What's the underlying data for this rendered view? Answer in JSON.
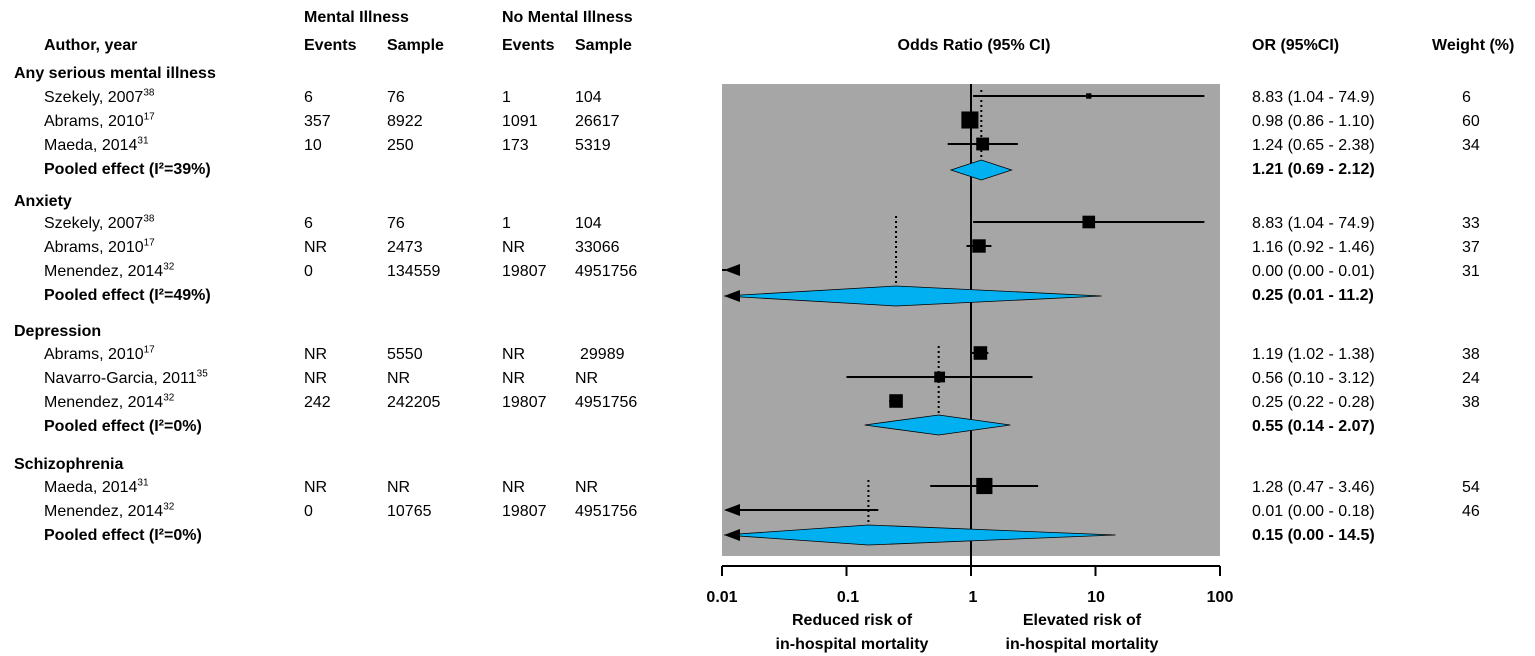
{
  "headers": {
    "mental_illness": "Mental Illness",
    "no_mental_illness": "No Mental Illness",
    "author_year": "Author, year",
    "events": "Events",
    "sample": "Sample",
    "odds_ratio": "Odds Ratio (95% CI)",
    "or_ci": "OR (95%CI)",
    "weight": "Weight (%)"
  },
  "groups": [
    {
      "title": "Any serious mental illness",
      "pooled_label": "Pooled effect (I²=39%)",
      "pooled_or": "1.21 (0.69 - 2.12)",
      "studies": [
        {
          "author": "Szekely, 2007",
          "ref": "38",
          "mi_events": "6",
          "mi_sample": "76",
          "nmi_events": "1",
          "nmi_sample": "104",
          "or_text": "8.83 (1.04 - 74.9)",
          "weight": "6"
        },
        {
          "author": "Abrams, 2010",
          "ref": "17",
          "mi_events": "357",
          "mi_sample": "8922",
          "nmi_events": "1091",
          "nmi_sample": "26617",
          "or_text": "0.98 (0.86 - 1.10)",
          "weight": "60"
        },
        {
          "author": "Maeda, 2014",
          "ref": "31",
          "mi_events": "10",
          "mi_sample": "250",
          "nmi_events": "173",
          "nmi_sample": "5319",
          "or_text": "1.24 (0.65 - 2.38)",
          "weight": "34"
        }
      ]
    },
    {
      "title": "Anxiety",
      "pooled_label": "Pooled effect (I²=49%)",
      "pooled_or": "0.25 (0.01 - 11.2)",
      "studies": [
        {
          "author": "Szekely, 2007",
          "ref": "38",
          "mi_events": "6",
          "mi_sample": "76",
          "nmi_events": "1",
          "nmi_sample": "104",
          "or_text": "8.83 (1.04 - 74.9)",
          "weight": "33"
        },
        {
          "author": "Abrams, 2010",
          "ref": "17",
          "mi_events": "NR",
          "mi_sample": "2473",
          "nmi_events": "NR",
          "nmi_sample": "33066",
          "or_text": "1.16 (0.92 - 1.46)",
          "weight": "37"
        },
        {
          "author": "Menendez, 2014",
          "ref": "32",
          "mi_events": "0",
          "mi_sample": "134559",
          "nmi_events": "19807",
          "nmi_sample": "4951756",
          "or_text": "0.00 (0.00 - 0.01)",
          "weight": "31"
        }
      ]
    },
    {
      "title": "Depression",
      "pooled_label": "Pooled effect (I²=0%)",
      "pooled_or": "0.55 (0.14 - 2.07)",
      "studies": [
        {
          "author": "Abrams, 2010",
          "ref": "17",
          "mi_events": "NR",
          "mi_sample": "5550",
          "nmi_events": "NR",
          "nmi_sample": "29989",
          "or_text": "1.19 (1.02 - 1.38)",
          "weight": "38"
        },
        {
          "author": "Navarro-Garcia, 2011",
          "ref": "35",
          "mi_events": "NR",
          "mi_sample": "NR",
          "nmi_events": "NR",
          "nmi_sample": "NR",
          "or_text": "0.56 (0.10 - 3.12)",
          "weight": "24"
        },
        {
          "author": "Menendez, 2014",
          "ref": "32",
          "mi_events": "242",
          "mi_sample": "242205",
          "nmi_events": "19807",
          "nmi_sample": "4951756",
          "or_text": "0.25 (0.22 - 0.28)",
          "weight": "38"
        }
      ]
    },
    {
      "title": "Schizophrenia",
      "pooled_label": "Pooled effect (I²=0%)",
      "pooled_or": "0.15 (0.00 - 14.5)",
      "studies": [
        {
          "author": "Maeda, 2014",
          "ref": "31",
          "mi_events": "NR",
          "mi_sample": "NR",
          "nmi_events": "NR",
          "nmi_sample": "NR",
          "or_text": "1.28 (0.47 - 3.46)",
          "weight": "54"
        },
        {
          "author": "Menendez, 2014",
          "ref": "32",
          "mi_events": "0",
          "mi_sample": "10765",
          "nmi_events": "19807",
          "nmi_sample": "4951756",
          "or_text": "0.01 (0.00 - 0.18)",
          "weight": "46"
        }
      ]
    }
  ],
  "axis": {
    "scale": "log",
    "range": [
      0.01,
      100
    ],
    "ticks": [
      "0.01",
      "0.1",
      "1",
      "10",
      "100"
    ],
    "left_label": [
      "Reduced risk of",
      "in-hospital mortality"
    ],
    "right_label": [
      "Elevated risk of",
      "in-hospital mortality"
    ]
  },
  "colors": {
    "plot_background": "#a6a6a6",
    "diamond_fill": "#00b0f0",
    "marker": "#000000"
  },
  "chart_data": {
    "type": "forest",
    "x_scale": "log",
    "xlim": [
      0.01,
      100
    ],
    "xticks": [
      0.01,
      0.1,
      1,
      10,
      100
    ],
    "reference_line": 1,
    "groups": [
      {
        "title": "Any serious mental illness",
        "studies": [
          {
            "author": "Szekely, 2007",
            "or": 8.83,
            "lo": 1.04,
            "hi": 74.9,
            "weight": 6
          },
          {
            "author": "Abrams, 2010",
            "or": 0.98,
            "lo": 0.86,
            "hi": 1.1,
            "weight": 60
          },
          {
            "author": "Maeda, 2014",
            "or": 1.24,
            "lo": 0.65,
            "hi": 2.38,
            "weight": 34
          }
        ],
        "pooled": {
          "or": 1.21,
          "lo": 0.69,
          "hi": 2.12
        }
      },
      {
        "title": "Anxiety",
        "studies": [
          {
            "author": "Szekely, 2007",
            "or": 8.83,
            "lo": 1.04,
            "hi": 74.9,
            "weight": 33
          },
          {
            "author": "Abrams, 2010",
            "or": 1.16,
            "lo": 0.92,
            "hi": 1.46,
            "weight": 37
          },
          {
            "author": "Menendez, 2014",
            "or": 0.0,
            "lo": 0.0,
            "hi": 0.01,
            "weight": 31
          }
        ],
        "pooled": {
          "or": 0.25,
          "lo": 0.01,
          "hi": 11.2
        }
      },
      {
        "title": "Depression",
        "studies": [
          {
            "author": "Abrams, 2010",
            "or": 1.19,
            "lo": 1.02,
            "hi": 1.38,
            "weight": 38
          },
          {
            "author": "Navarro-Garcia, 2011",
            "or": 0.56,
            "lo": 0.1,
            "hi": 3.12,
            "weight": 24
          },
          {
            "author": "Menendez, 2014",
            "or": 0.25,
            "lo": 0.22,
            "hi": 0.28,
            "weight": 38
          }
        ],
        "pooled": {
          "or": 0.55,
          "lo": 0.14,
          "hi": 2.07
        }
      },
      {
        "title": "Schizophrenia",
        "studies": [
          {
            "author": "Maeda, 2014",
            "or": 1.28,
            "lo": 0.47,
            "hi": 3.46,
            "weight": 54
          },
          {
            "author": "Menendez, 2014",
            "or": 0.01,
            "lo": 0.0,
            "hi": 0.18,
            "weight": 46
          }
        ],
        "pooled": {
          "or": 0.15,
          "lo": 0.0,
          "hi": 14.5
        }
      }
    ]
  }
}
